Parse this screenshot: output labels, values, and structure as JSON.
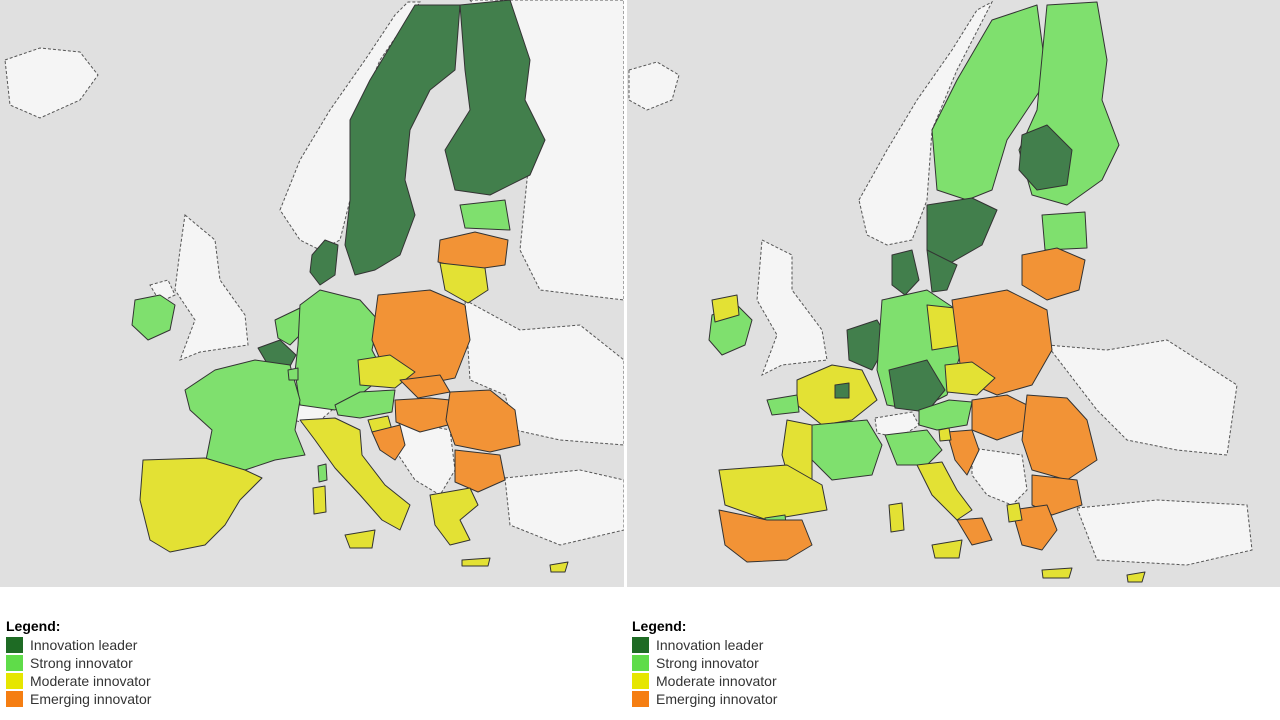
{
  "legend": {
    "title": "Legend:",
    "items": [
      {
        "label": "Innovation leader",
        "color": "#1e6b24"
      },
      {
        "label": "Strong innovator",
        "color": "#5fdc49"
      },
      {
        "label": "Moderate innovator",
        "color": "#e6e600"
      },
      {
        "label": "Emerging innovator",
        "color": "#f57e12"
      }
    ]
  },
  "map_colors": {
    "leader": "#427f4c",
    "strong": "#7fe06e",
    "moderate": "#e3e134",
    "emerging": "#f29336",
    "non_eu": "#f5f5f5",
    "sea": "#e0e0e0"
  }
}
